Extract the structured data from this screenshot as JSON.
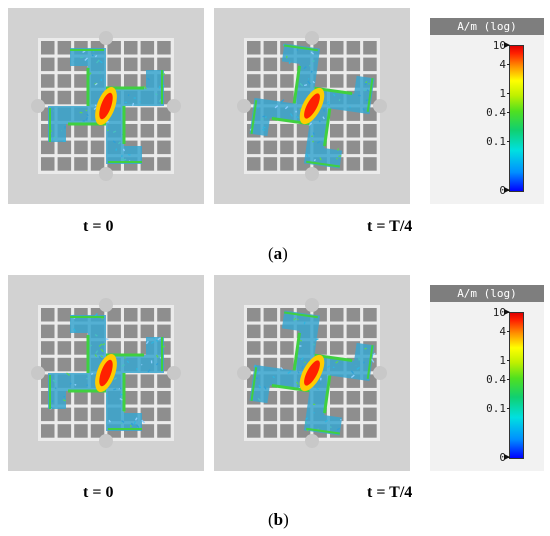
{
  "figure_a": {
    "label_open": "(",
    "label_letter": "a",
    "label_close": ")",
    "panels": [
      {
        "time_label": "t = 0"
      },
      {
        "time_label": "t = T/4"
      }
    ],
    "colorbar": {
      "title": "A/m (log)",
      "ticks": [
        {
          "label": "10",
          "value": 10
        },
        {
          "label": "4",
          "value": 4
        },
        {
          "label": "1",
          "value": 1
        },
        {
          "label": "0.4",
          "value": 0.4
        },
        {
          "label": "0.1",
          "value": 0.1
        },
        {
          "label": "0",
          "value": 0
        }
      ]
    }
  },
  "figure_b": {
    "label_open": "(",
    "label_letter": "b",
    "label_close": ")",
    "panels": [
      {
        "time_label": "t = 0"
      },
      {
        "time_label": "t = T/4"
      }
    ],
    "colorbar": {
      "title": "A/m (log)",
      "ticks": [
        {
          "label": "10",
          "value": 10
        },
        {
          "label": "4",
          "value": 4
        },
        {
          "label": "1",
          "value": 1
        },
        {
          "label": "0.4",
          "value": 0.4
        },
        {
          "label": "0.1",
          "value": 0.1
        },
        {
          "label": "0",
          "value": 0
        }
      ]
    }
  },
  "colors": {
    "substrate": "#d2d2d2",
    "grid_back": "#ebebeb",
    "grid_cell": "#8e8e8e",
    "field_low": "#30a8d8",
    "field_mid": "#40d040",
    "field_high": "#ff2000"
  }
}
